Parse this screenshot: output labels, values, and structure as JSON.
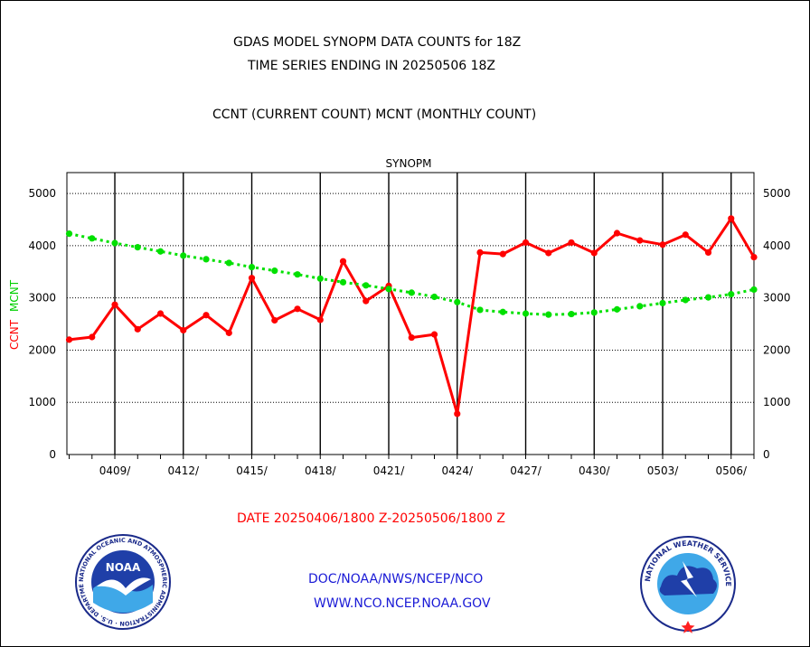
{
  "header": {
    "title_line1": "GDAS MODEL SYNOPM DATA COUNTS for 18Z",
    "title_line2": "TIME SERIES ENDING IN 20250506 18Z",
    "title_line3": "CCNT (CURRENT COUNT) MCNT (MONTHLY COUNT)"
  },
  "footer": {
    "date_range": "DATE 20250406/1800 Z-20250506/1800 Z",
    "link1": "DOC/NOAA/NWS/NCEP/NCO",
    "link2": "WWW.NCO.NCEP.NOAA.GOV"
  },
  "logos": {
    "left_text": "NOAA",
    "left_ring_text": "NATIONAL OCEANIC AND ATMOSPHERIC ADMINISTRATION · U.S. DEPARTMENT OF COMMERCE",
    "right_ring_text": "NATIONAL WEATHER SERVICE"
  },
  "colors": {
    "ccnt": "#ff0000",
    "mcnt": "#00e000",
    "panel_title": "#1a1ad6",
    "grid": "#000000"
  },
  "chart_data": {
    "type": "line",
    "title": "SYNOPM",
    "ylabel_left": [
      "CCNT",
      "MCNT"
    ],
    "ylim": [
      0,
      5400
    ],
    "y_ticks": [
      0,
      1000,
      2000,
      3000,
      4000,
      5000
    ],
    "xlim": [
      0.9,
      31.0
    ],
    "x_ticks": [
      {
        "day": 3,
        "label": "0409/"
      },
      {
        "day": 6,
        "label": "0412/"
      },
      {
        "day": 9,
        "label": "0415/"
      },
      {
        "day": 12,
        "label": "0418/"
      },
      {
        "day": 15,
        "label": "0421/"
      },
      {
        "day": 18,
        "label": "0424/"
      },
      {
        "day": 21,
        "label": "0427/"
      },
      {
        "day": 24,
        "label": "0430/"
      },
      {
        "day": 27,
        "label": "0503/"
      },
      {
        "day": 30,
        "label": "0506/"
      }
    ],
    "grid": true,
    "series": [
      {
        "name": "CCNT",
        "style": "solid",
        "values": [
          2200,
          2250,
          2870,
          2400,
          2700,
          2380,
          2670,
          2330,
          3380,
          2570,
          2790,
          2580,
          3700,
          2940,
          3230,
          2240,
          2300,
          780,
          3870,
          3840,
          4060,
          3860,
          4060,
          3860,
          4240,
          4100,
          4020,
          4210,
          3870,
          4520,
          3780
        ]
      },
      {
        "name": "MCNT",
        "style": "dashed",
        "values": [
          4230,
          4140,
          4050,
          3970,
          3890,
          3810,
          3740,
          3670,
          3590,
          3520,
          3450,
          3370,
          3300,
          3240,
          3170,
          3100,
          3020,
          2920,
          2770,
          2730,
          2700,
          2680,
          2690,
          2720,
          2780,
          2840,
          2900,
          2960,
          3010,
          3070,
          3160
        ]
      }
    ]
  }
}
